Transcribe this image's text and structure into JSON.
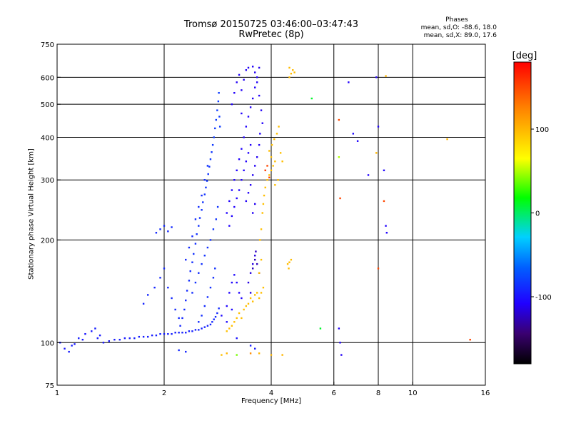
{
  "header": {
    "title_line1": "Tromsø 20150725 03:46:00–03:47:43",
    "title_line2": "RwPretec (8p)",
    "phases_heading": "Phases",
    "phases_o": "mean, sd,O: -88.6, 18.0",
    "phases_x": "mean, sd,X: 89.0, 17.6"
  },
  "chart_data": {
    "type": "scatter",
    "xlabel": "Frequency [MHz]",
    "ylabel": "Stationary phase Virtual Height [km]",
    "xscale": "log",
    "yscale": "log",
    "xlim": [
      1,
      16
    ],
    "ylim": [
      75,
      750
    ],
    "xticks": [
      {
        "value": 1,
        "label": "1"
      },
      {
        "value": 2,
        "label": "2"
      },
      {
        "value": 4,
        "label": "4"
      },
      {
        "value": 6,
        "label": "6"
      },
      {
        "value": 8,
        "label": "8"
      },
      {
        "value": 10,
        "label": "10"
      },
      {
        "value": 16,
        "label": "16"
      }
    ],
    "yticks": [
      {
        "value": 75,
        "label": "75"
      },
      {
        "value": 100,
        "label": "100"
      },
      {
        "value": 200,
        "label": "200"
      },
      {
        "value": 300,
        "label": "300"
      },
      {
        "value": 400,
        "label": "400"
      },
      {
        "value": 500,
        "label": "500"
      },
      {
        "value": 600,
        "label": "600"
      },
      {
        "value": 750,
        "label": "750"
      }
    ],
    "grid": true,
    "grid_x": [
      2,
      4,
      6,
      8,
      10
    ],
    "grid_y": [
      100,
      200,
      300,
      400,
      500,
      600
    ],
    "colorbar": {
      "label": "[deg]",
      "range": [
        -180,
        180
      ],
      "ticks": [
        {
          "value": 100,
          "label": "100"
        },
        {
          "value": 0,
          "label": "0"
        },
        {
          "value": -100,
          "label": "-100"
        }
      ]
    },
    "points": [
      [
        1.02,
        100,
        -95
      ],
      [
        1.05,
        96,
        -98
      ],
      [
        1.08,
        94,
        -96
      ],
      [
        1.12,
        99,
        -97
      ],
      [
        1.15,
        103,
        -95
      ],
      [
        1.2,
        106,
        -99
      ],
      [
        1.25,
        108,
        -97
      ],
      [
        1.3,
        103,
        -96
      ],
      [
        1.35,
        100,
        -98
      ],
      [
        1.1,
        98,
        -96
      ],
      [
        1.18,
        102,
        -97
      ],
      [
        1.28,
        110,
        -95
      ],
      [
        1.32,
        105,
        -97
      ],
      [
        1.4,
        101,
        -99
      ],
      [
        1.45,
        102,
        -96
      ],
      [
        1.5,
        102,
        -95
      ],
      [
        1.55,
        103,
        -97
      ],
      [
        1.6,
        103,
        -96
      ],
      [
        1.65,
        103,
        -95
      ],
      [
        1.7,
        104,
        -94
      ],
      [
        1.75,
        104,
        -96
      ],
      [
        1.8,
        104,
        -95
      ],
      [
        1.85,
        105,
        -96
      ],
      [
        1.9,
        105,
        -94
      ],
      [
        1.95,
        106,
        -95
      ],
      [
        2.0,
        106,
        -94
      ],
      [
        2.05,
        106,
        -95
      ],
      [
        2.1,
        106,
        -94
      ],
      [
        2.15,
        107,
        -95
      ],
      [
        2.2,
        107,
        -93
      ],
      [
        2.25,
        107,
        -94
      ],
      [
        2.3,
        107,
        -95
      ],
      [
        2.35,
        108,
        -93
      ],
      [
        2.4,
        108,
        -94
      ],
      [
        2.45,
        109,
        -93
      ],
      [
        2.5,
        109,
        -92
      ],
      [
        2.55,
        110,
        -93
      ],
      [
        2.6,
        111,
        -92
      ],
      [
        2.65,
        112,
        -93
      ],
      [
        2.7,
        113,
        -92
      ],
      [
        2.73,
        115,
        -91
      ],
      [
        2.76,
        117,
        -92
      ],
      [
        2.79,
        119,
        -91
      ],
      [
        2.82,
        122,
        -90
      ],
      [
        2.85,
        126,
        -89
      ],
      [
        1.75,
        130,
        -92
      ],
      [
        1.8,
        138,
        -91
      ],
      [
        1.88,
        145,
        -92
      ],
      [
        1.95,
        155,
        -91
      ],
      [
        2.0,
        165,
        -90
      ],
      [
        1.9,
        210,
        -90
      ],
      [
        1.95,
        215,
        -89
      ],
      [
        2.0,
        220,
        -90
      ],
      [
        2.05,
        212,
        -91
      ],
      [
        2.1,
        218,
        -90
      ],
      [
        2.05,
        145,
        -91
      ],
      [
        2.1,
        135,
        -90
      ],
      [
        2.15,
        125,
        -91
      ],
      [
        2.2,
        118,
        -90
      ],
      [
        2.22,
        112,
        -91
      ],
      [
        2.25,
        118,
        -90
      ],
      [
        2.28,
        125,
        -89
      ],
      [
        2.3,
        133,
        -90
      ],
      [
        2.32,
        142,
        -89
      ],
      [
        2.35,
        152,
        -88
      ],
      [
        2.37,
        162,
        -89
      ],
      [
        2.4,
        172,
        -88
      ],
      [
        2.42,
        182,
        -87
      ],
      [
        2.45,
        195,
        -88
      ],
      [
        2.47,
        208,
        -87
      ],
      [
        2.5,
        220,
        -86
      ],
      [
        2.52,
        232,
        -87
      ],
      [
        2.55,
        245,
        -86
      ],
      [
        2.57,
        258,
        -85
      ],
      [
        2.6,
        272,
        -86
      ],
      [
        2.62,
        285,
        -85
      ],
      [
        2.64,
        298,
        -84
      ],
      [
        2.66,
        312,
        -85
      ],
      [
        2.68,
        328,
        -84
      ],
      [
        2.7,
        345,
        -83
      ],
      [
        2.72,
        362,
        -84
      ],
      [
        2.74,
        380,
        -83
      ],
      [
        2.76,
        400,
        -82
      ],
      [
        2.78,
        425,
        -83
      ],
      [
        2.8,
        450,
        -82
      ],
      [
        2.82,
        480,
        -81
      ],
      [
        2.84,
        510,
        -82
      ],
      [
        2.85,
        540,
        -81
      ],
      [
        2.86,
        460,
        -82
      ],
      [
        2.87,
        430,
        -81
      ],
      [
        2.4,
        140,
        -88
      ],
      [
        2.45,
        150,
        -87
      ],
      [
        2.5,
        160,
        -88
      ],
      [
        2.55,
        170,
        -87
      ],
      [
        2.6,
        180,
        -86
      ],
      [
        2.65,
        190,
        -87
      ],
      [
        2.7,
        200,
        -86
      ],
      [
        2.75,
        215,
        -85
      ],
      [
        2.8,
        230,
        -86
      ],
      [
        2.83,
        250,
        -85
      ],
      [
        2.5,
        115,
        -89
      ],
      [
        2.55,
        120,
        -88
      ],
      [
        2.6,
        128,
        -89
      ],
      [
        2.65,
        136,
        -88
      ],
      [
        2.7,
        145,
        -87
      ],
      [
        2.75,
        155,
        -88
      ],
      [
        2.78,
        165,
        -87
      ],
      [
        2.3,
        175,
        -90
      ],
      [
        2.35,
        190,
        -89
      ],
      [
        2.4,
        205,
        -90
      ],
      [
        2.45,
        230,
        -89
      ],
      [
        2.5,
        250,
        -88
      ],
      [
        2.55,
        270,
        -89
      ],
      [
        2.6,
        300,
        -88
      ],
      [
        2.65,
        330,
        -87
      ],
      [
        2.9,
        120,
        -105
      ],
      [
        3.0,
        128,
        -106
      ],
      [
        3.05,
        140,
        -107
      ],
      [
        3.1,
        150,
        -106
      ],
      [
        3.15,
        158,
        -105
      ],
      [
        3.2,
        150,
        -106
      ],
      [
        3.25,
        140,
        -107
      ],
      [
        3.3,
        135,
        -106
      ],
      [
        3.0,
        115,
        -104
      ],
      [
        3.1,
        125,
        -105
      ],
      [
        3.05,
        220,
        -108
      ],
      [
        3.1,
        235,
        -107
      ],
      [
        3.15,
        250,
        -108
      ],
      [
        3.2,
        265,
        -107
      ],
      [
        3.25,
        280,
        -108
      ],
      [
        3.3,
        300,
        -109
      ],
      [
        3.35,
        320,
        -108
      ],
      [
        3.4,
        340,
        -109
      ],
      [
        3.45,
        360,
        -108
      ],
      [
        3.5,
        380,
        -109
      ],
      [
        3.0,
        240,
        -107
      ],
      [
        3.05,
        260,
        -108
      ],
      [
        3.1,
        280,
        -107
      ],
      [
        3.15,
        300,
        -108
      ],
      [
        3.2,
        320,
        -107
      ],
      [
        3.25,
        345,
        -108
      ],
      [
        3.3,
        370,
        -107
      ],
      [
        3.35,
        400,
        -108
      ],
      [
        3.4,
        430,
        -107
      ],
      [
        3.45,
        460,
        -108
      ],
      [
        3.5,
        490,
        -109
      ],
      [
        3.55,
        520,
        -110
      ],
      [
        3.6,
        560,
        -109
      ],
      [
        3.65,
        600,
        -110
      ],
      [
        3.7,
        640,
        -111
      ],
      [
        3.3,
        550,
        -110
      ],
      [
        3.35,
        590,
        -111
      ],
      [
        3.4,
        630,
        -110
      ],
      [
        3.45,
        640,
        -111
      ],
      [
        3.55,
        645,
        -110
      ],
      [
        3.6,
        620,
        -111
      ],
      [
        3.65,
        580,
        -110
      ],
      [
        3.7,
        530,
        -109
      ],
      [
        3.75,
        480,
        -110
      ],
      [
        3.78,
        440,
        -109
      ],
      [
        3.1,
        500,
        -108
      ],
      [
        3.15,
        540,
        -109
      ],
      [
        3.2,
        580,
        -110
      ],
      [
        3.25,
        610,
        -109
      ],
      [
        3.3,
        470,
        -108
      ],
      [
        3.4,
        260,
        -110
      ],
      [
        3.45,
        275,
        -109
      ],
      [
        3.5,
        290,
        -110
      ],
      [
        3.55,
        310,
        -111
      ],
      [
        3.6,
        330,
        -110
      ],
      [
        3.65,
        350,
        -111
      ],
      [
        3.7,
        380,
        -110
      ],
      [
        3.72,
        410,
        -109
      ],
      [
        3.55,
        240,
        -110
      ],
      [
        3.6,
        255,
        -111
      ],
      [
        3.45,
        150,
        -115
      ],
      [
        3.5,
        160,
        -116
      ],
      [
        3.55,
        170,
        -115
      ],
      [
        3.6,
        180,
        -116
      ],
      [
        3.5,
        140,
        -115
      ],
      [
        3.55,
        165,
        -125
      ],
      [
        3.6,
        175,
        -126
      ],
      [
        3.65,
        170,
        -125
      ],
      [
        3.7,
        160,
        -126
      ],
      [
        3.62,
        185,
        -124
      ],
      [
        3.0,
        108,
        95
      ],
      [
        3.05,
        110,
        96
      ],
      [
        3.1,
        112,
        95
      ],
      [
        3.15,
        115,
        96
      ],
      [
        3.2,
        118,
        95
      ],
      [
        3.25,
        122,
        96
      ],
      [
        3.3,
        118,
        95
      ],
      [
        3.35,
        125,
        96
      ],
      [
        3.4,
        128,
        95
      ],
      [
        3.45,
        130,
        96
      ],
      [
        3.5,
        135,
        95
      ],
      [
        3.55,
        132,
        96
      ],
      [
        3.6,
        138,
        95
      ],
      [
        3.65,
        140,
        96
      ],
      [
        3.7,
        135,
        95
      ],
      [
        3.75,
        140,
        96
      ],
      [
        3.8,
        145,
        95
      ],
      [
        3.7,
        160,
        96
      ],
      [
        3.75,
        175,
        95
      ],
      [
        3.72,
        200,
        96
      ],
      [
        3.75,
        215,
        95
      ],
      [
        3.78,
        240,
        96
      ],
      [
        3.8,
        255,
        95
      ],
      [
        3.82,
        270,
        96
      ],
      [
        3.85,
        285,
        95
      ],
      [
        3.9,
        300,
        96
      ],
      [
        3.95,
        310,
        95
      ],
      [
        4.0,
        320,
        96
      ],
      [
        4.05,
        330,
        95
      ],
      [
        4.1,
        340,
        96
      ],
      [
        4.0,
        350,
        95
      ],
      [
        3.95,
        365,
        96
      ],
      [
        4.02,
        380,
        95
      ],
      [
        4.08,
        395,
        96
      ],
      [
        4.15,
        410,
        95
      ],
      [
        4.2,
        430,
        96
      ],
      [
        4.25,
        360,
        95
      ],
      [
        4.3,
        340,
        96
      ],
      [
        4.18,
        300,
        95
      ],
      [
        4.1,
        290,
        96
      ],
      [
        4.5,
        600,
        98
      ],
      [
        4.55,
        615,
        97
      ],
      [
        4.6,
        630,
        98
      ],
      [
        4.65,
        620,
        97
      ],
      [
        4.5,
        640,
        98
      ],
      [
        4.45,
        170,
        97
      ],
      [
        4.5,
        172,
        98
      ],
      [
        4.55,
        175,
        97
      ],
      [
        4.48,
        165,
        98
      ],
      [
        3.9,
        330,
        150
      ],
      [
        3.85,
        320,
        155
      ],
      [
        3.95,
        305,
        150
      ],
      [
        6.2,
        110,
        -110
      ],
      [
        6.25,
        100,
        -108
      ],
      [
        6.3,
        92,
        -110
      ],
      [
        6.6,
        580,
        -108
      ],
      [
        6.8,
        410,
        -105
      ],
      [
        7.0,
        390,
        -106
      ],
      [
        7.5,
        310,
        -108
      ],
      [
        7.9,
        600,
        -110
      ],
      [
        8.0,
        430,
        -108
      ],
      [
        8.3,
        320,
        -106
      ],
      [
        8.4,
        220,
        -108
      ],
      [
        8.45,
        210,
        -107
      ],
      [
        6.2,
        450,
        150
      ],
      [
        6.25,
        265,
        150
      ],
      [
        8.3,
        260,
        150
      ],
      [
        8.0,
        165,
        150
      ],
      [
        14.5,
        102,
        150
      ],
      [
        8.4,
        605,
        100
      ],
      [
        7.9,
        360,
        100
      ],
      [
        12.5,
        395,
        100
      ],
      [
        6.2,
        350,
        50
      ],
      [
        5.5,
        110,
        10
      ],
      [
        5.2,
        520,
        10
      ],
      [
        2.9,
        92,
        95
      ],
      [
        3.0,
        93,
        100
      ],
      [
        3.2,
        92,
        40
      ],
      [
        3.5,
        93,
        120
      ],
      [
        3.7,
        93,
        100
      ],
      [
        4.0,
        92,
        100
      ],
      [
        4.3,
        92,
        100
      ],
      [
        2.2,
        95,
        -90
      ],
      [
        2.3,
        94,
        -92
      ],
      [
        3.5,
        98,
        -95
      ],
      [
        3.6,
        96,
        -96
      ],
      [
        3.2,
        103,
        -100
      ]
    ]
  }
}
